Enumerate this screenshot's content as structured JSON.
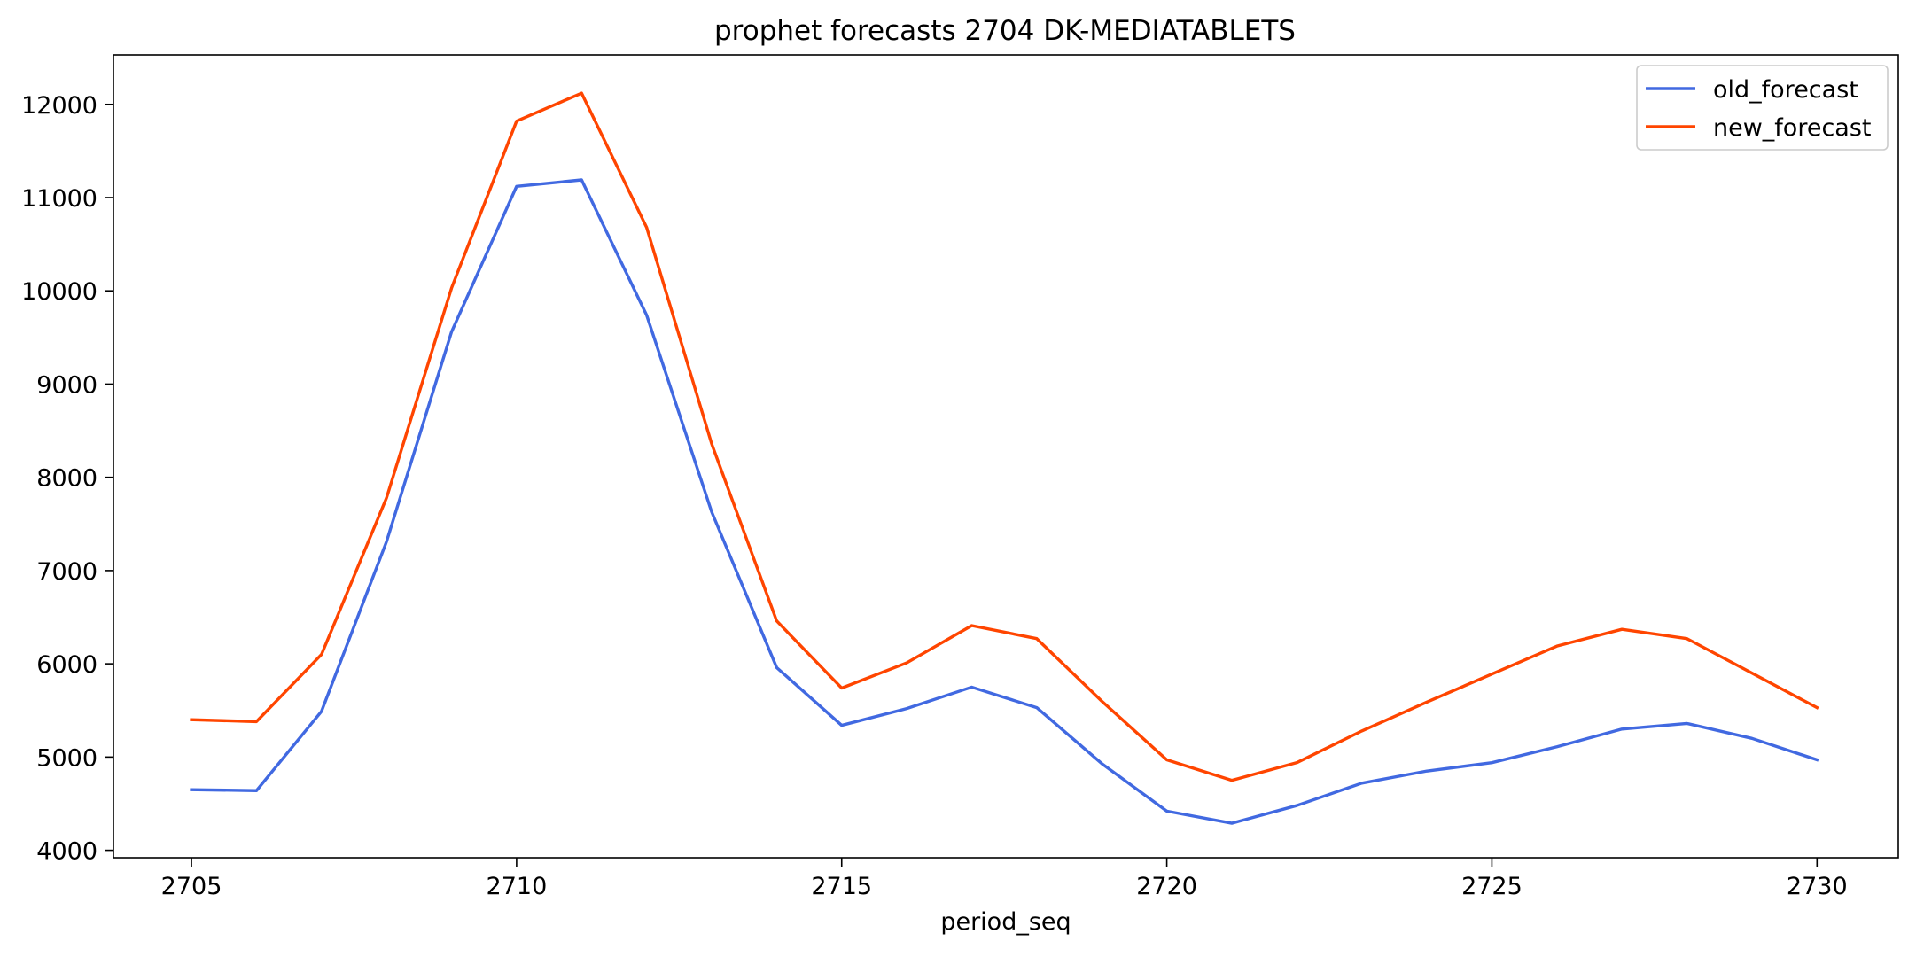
{
  "chart_data": {
    "type": "line",
    "title": "prophet forecasts 2704 DK-MEDIATABLETS",
    "xlabel": "period_seq",
    "ylabel": "",
    "x": [
      2705,
      2706,
      2707,
      2708,
      2709,
      2710,
      2711,
      2712,
      2713,
      2714,
      2715,
      2716,
      2717,
      2718,
      2719,
      2720,
      2721,
      2722,
      2723,
      2724,
      2725,
      2726,
      2727,
      2728,
      2729,
      2730
    ],
    "xlim": [
      2703.8,
      2731.25
    ],
    "ylim": [
      3920,
      12530
    ],
    "xticks": [
      2705,
      2710,
      2715,
      2720,
      2725,
      2730
    ],
    "yticks": [
      4000,
      5000,
      6000,
      7000,
      8000,
      9000,
      10000,
      11000,
      12000
    ],
    "grid": false,
    "legend_position": "top-right",
    "series": [
      {
        "name": "old_forecast",
        "color": "#4169e1",
        "values": [
          4650,
          4640,
          5490,
          7310,
          9560,
          11120,
          11190,
          9740,
          7630,
          5960,
          5340,
          5520,
          5750,
          5530,
          4930,
          4420,
          4290,
          4480,
          4720,
          4850,
          4940,
          5110,
          5300,
          5360,
          5200,
          4970
        ]
      },
      {
        "name": "new_forecast",
        "color": "#ff4500",
        "values": [
          5400,
          5380,
          6100,
          7780,
          10030,
          11820,
          12120,
          10680,
          8360,
          6460,
          5740,
          6010,
          6410,
          6270,
          5600,
          4970,
          4750,
          4940,
          5280,
          5590,
          5890,
          6190,
          6370,
          6270,
          5900,
          5530
        ]
      }
    ]
  }
}
